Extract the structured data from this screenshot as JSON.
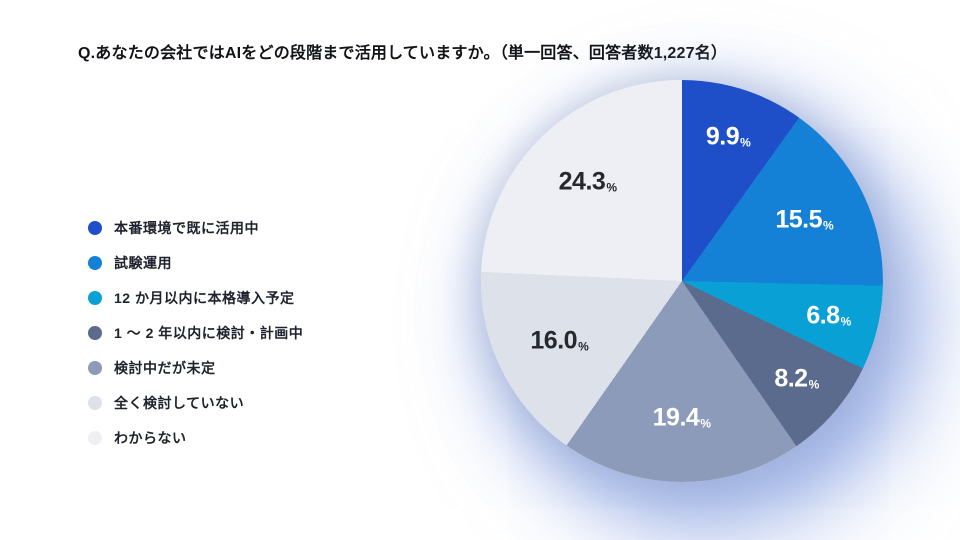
{
  "title": "Q.あなたの会社ではAIをどの段階まで活用していますか。（単一回答、回答者数1,227名）",
  "survey": {
    "answer_type": "単一回答",
    "respondents": "1,227名"
  },
  "chart_data": {
    "type": "pie",
    "title": "Q.あなたの会社ではAIをどの段階まで活用していますか。",
    "categories": [
      "本番環境で既に活用中",
      "試験運用",
      "12 か月以内に本格導入予定",
      "1 ～ 2 年以内に検討・計画中",
      "検討中だが未定",
      "全く検討していない",
      "わからない"
    ],
    "values": [
      9.9,
      15.5,
      6.8,
      8.2,
      19.4,
      16.0,
      24.3
    ],
    "value_labels": [
      "9.9",
      "15.5",
      "6.8",
      "8.2",
      "19.4",
      "16.0",
      "24.3"
    ],
    "unit": "%",
    "colors": [
      "#1E4FC9",
      "#1581D6",
      "#09A0D6",
      "#5A6B8E",
      "#8C9BBA",
      "#DCE1EA",
      "#EDEFF4"
    ],
    "label_colors": [
      "#FFFFFF",
      "#FFFFFF",
      "#FFFFFF",
      "#FFFFFF",
      "#FFFFFF",
      "#26282E",
      "#26282E"
    ],
    "start_angle_deg": 0,
    "direction": "clockwise",
    "legend_position": "left"
  }
}
